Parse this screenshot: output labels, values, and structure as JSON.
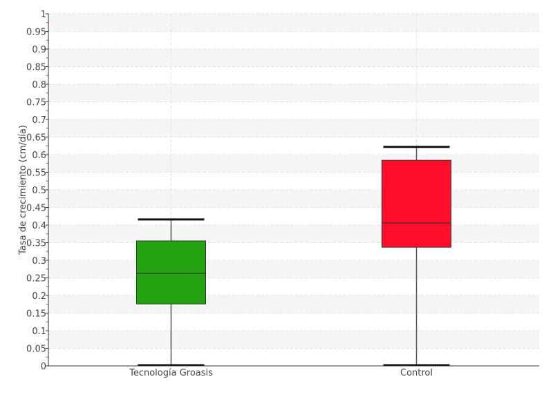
{
  "chart_data": {
    "type": "boxplot",
    "title": "",
    "xlabel": "",
    "ylabel": "Tasa de crecimiento (cm/día)",
    "ylim": [
      0,
      1
    ],
    "ytick_step": 0.05,
    "grid": true,
    "categories": [
      "Tecnología Groasis",
      "Control"
    ],
    "boxes": [
      {
        "category": "Tecnología Groasis",
        "min": 0.0,
        "q1": 0.176,
        "median": 0.263,
        "q3": 0.355,
        "max": 0.416,
        "color": "#22a30f"
      },
      {
        "category": "Control",
        "min": 0.0,
        "q1": 0.337,
        "median": 0.406,
        "q3": 0.584,
        "max": 0.622,
        "color": "#ff0d29"
      }
    ]
  }
}
